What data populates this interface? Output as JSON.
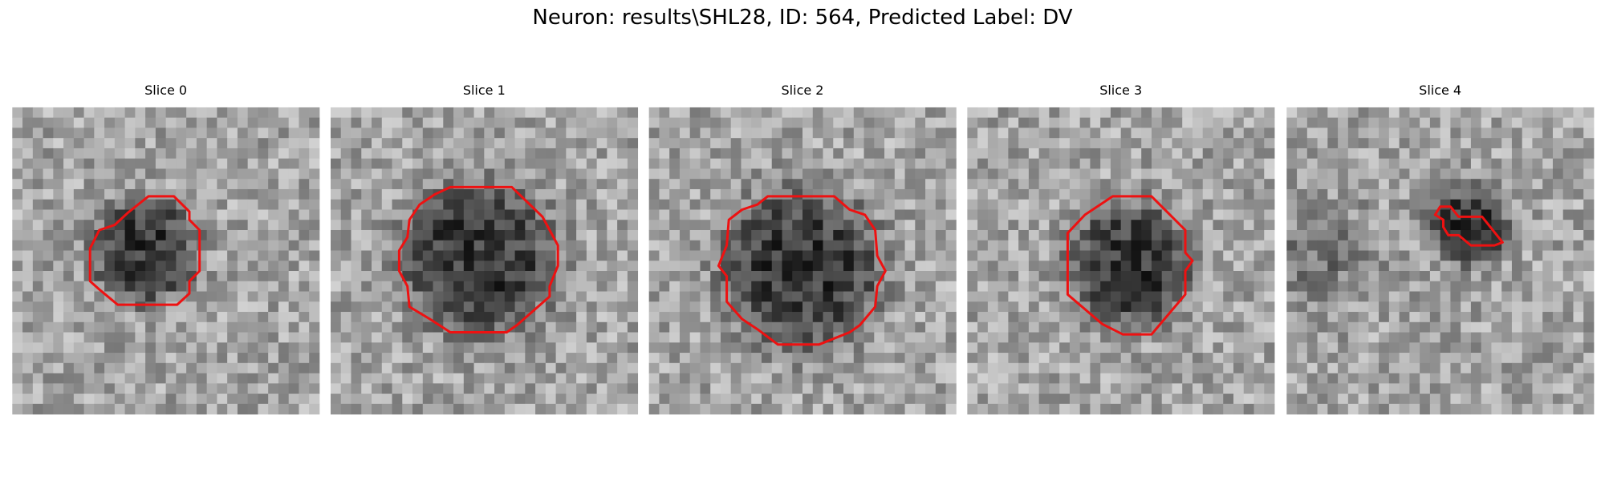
{
  "title": "Neuron: results\\SHL28, ID: 564, Predicted Label: DV",
  "panels": [
    {
      "title": "Slice 0"
    },
    {
      "title": "Slice 1"
    },
    {
      "title": "Slice 2"
    },
    {
      "title": "Slice 3"
    },
    {
      "title": "Slice 4"
    }
  ]
}
